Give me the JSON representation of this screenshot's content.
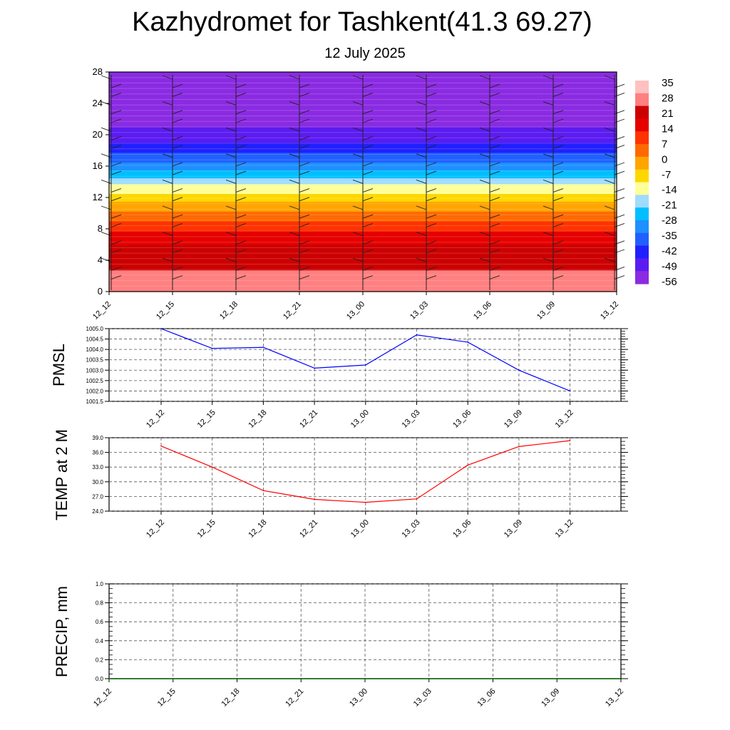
{
  "header": {
    "title": "Kazhydromet for Tashkent(41.3 69.27)",
    "date": "12 July 2025"
  },
  "colors": {
    "pmsl_line": "#0000ff",
    "temp_line": "#ff0000",
    "precip_line": "#006400",
    "colormap": [
      "#8a2be2",
      "#5b1cf0",
      "#2020ff",
      "#2060ff",
      "#1e90ff",
      "#00bfff",
      "#9fdcff",
      "#ffff99",
      "#ffd700",
      "#ffa500",
      "#ff6a00",
      "#ff3300",
      "#e60000",
      "#cc0000",
      "#ff8080",
      "#ffc0c0"
    ]
  },
  "chart_data": [
    {
      "type": "heatmap",
      "description_hidden": false,
      "x": [
        "12_12",
        "12_15",
        "12_18",
        "12_21",
        "13_00",
        "13_03",
        "13_06",
        "13_09",
        "13_12"
      ],
      "ylim": [
        0,
        28
      ],
      "yticks": [
        0,
        4,
        8,
        12,
        16,
        20,
        24,
        28
      ],
      "colorbar": {
        "labels": [
          "35",
          "28",
          "21",
          "14",
          "7",
          "0",
          "-7",
          "-14",
          "-21",
          "-28",
          "-35",
          "-42",
          "-49",
          "-56"
        ],
        "range": [
          -60,
          38
        ]
      },
      "temperature_profile": {
        "heights": [
          0,
          2,
          4,
          6,
          8,
          10,
          12,
          13.5,
          16,
          20,
          24,
          28
        ],
        "values": [
          32,
          27,
          23,
          20,
          12,
          3,
          -8,
          -16,
          -33,
          -52,
          -60,
          -62
        ]
      }
    },
    {
      "type": "line",
      "ylabel": "PMSL",
      "x": [
        "12_12",
        "12_15",
        "12_18",
        "12_21",
        "13_00",
        "13_03",
        "13_06",
        "13_09",
        "13_12"
      ],
      "ylim": [
        1001.5,
        1005.0
      ],
      "yticks": [
        "1001.5",
        "1002.0",
        "1002.5",
        "1003.0",
        "1003.5",
        "1004.0",
        "1004.5",
        "1005.0"
      ],
      "series": [
        {
          "values": [
            1005.0,
            1004.05,
            1004.1,
            1003.1,
            1003.25,
            1004.7,
            1004.35,
            1003.0,
            1002.0
          ]
        }
      ]
    },
    {
      "type": "line",
      "ylabel": "TEMP at 2 M",
      "x": [
        "12_12",
        "12_15",
        "12_18",
        "12_21",
        "13_00",
        "13_03",
        "13_06",
        "13_09",
        "13_12"
      ],
      "ylim": [
        24.0,
        39.0
      ],
      "yticks": [
        "24.0",
        "27.0",
        "30.0",
        "33.0",
        "36.0",
        "39.0"
      ],
      "series": [
        {
          "values": [
            37.3,
            33.0,
            28.2,
            26.4,
            25.8,
            26.5,
            33.4,
            37.2,
            38.4
          ]
        }
      ]
    },
    {
      "type": "line",
      "ylabel": "PRECIP, mm",
      "x": [
        "12_12",
        "12_15",
        "12_18",
        "12_21",
        "13_00",
        "13_03",
        "13_06",
        "13_09",
        "13_12"
      ],
      "ylim": [
        0.0,
        1.0
      ],
      "yticks": [
        "0.0",
        "0.2",
        "0.4",
        "0.6",
        "0.8",
        "1.0"
      ],
      "series": [
        {
          "values": [
            0,
            0,
            0,
            0,
            0,
            0,
            0,
            0,
            0
          ]
        }
      ]
    }
  ]
}
